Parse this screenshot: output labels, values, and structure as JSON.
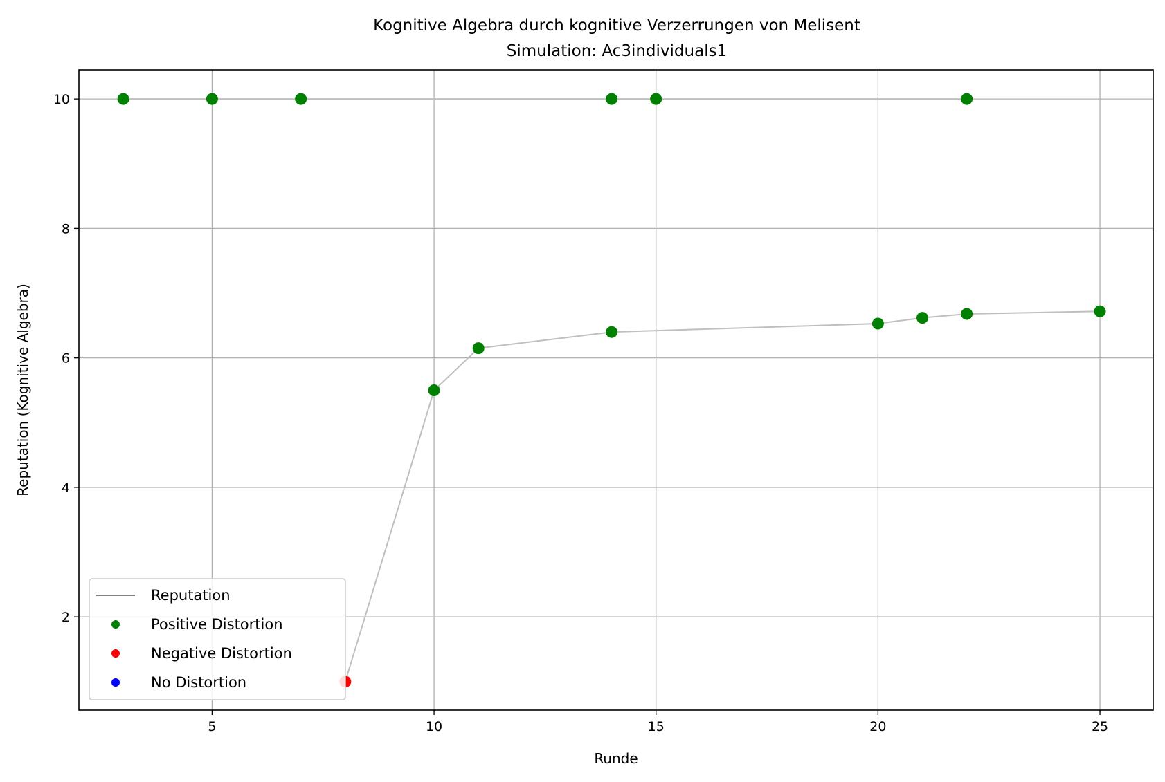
{
  "chart_data": {
    "type": "line",
    "title": "Kognitive Algebra durch kognitive Verzerrungen von Melisent",
    "subtitle": "Simulation: Ac3individuals1",
    "xlabel": "Runde",
    "ylabel": "Reputation (Kognitive Algebra)",
    "xlim": [
      2,
      26.2
    ],
    "ylim": [
      0.56,
      10.45
    ],
    "xticks": [
      5,
      10,
      15,
      20,
      25
    ],
    "yticks": [
      2,
      4,
      6,
      8,
      10
    ],
    "grid": true,
    "legend_position": "lower-left",
    "legend": [
      {
        "label": "Reputation",
        "kind": "line",
        "color": "#808080"
      },
      {
        "label": "Positive Distortion",
        "kind": "marker",
        "color": "#008000"
      },
      {
        "label": "Negative Distortion",
        "kind": "marker",
        "color": "#ff0000"
      },
      {
        "label": "No Distortion",
        "kind": "marker",
        "color": "#0000ff"
      }
    ],
    "series": [
      {
        "kind": "reputation-line-top",
        "color": "#bfbfbf",
        "points": [
          [
            3,
            10
          ],
          [
            5,
            10
          ],
          [
            7,
            10
          ],
          [
            14,
            10
          ],
          [
            15,
            10
          ],
          [
            22,
            10
          ]
        ]
      },
      {
        "kind": "reputation-line-main",
        "color": "#bfbfbf",
        "points": [
          [
            8,
            1.0
          ],
          [
            10,
            5.5
          ],
          [
            11,
            6.15
          ],
          [
            14,
            6.4
          ],
          [
            20,
            6.53
          ],
          [
            21,
            6.62
          ],
          [
            22,
            6.68
          ],
          [
            25,
            6.72
          ]
        ]
      }
    ],
    "points": [
      {
        "x": 3,
        "y": 10,
        "type": "positive"
      },
      {
        "x": 5,
        "y": 10,
        "type": "positive"
      },
      {
        "x": 7,
        "y": 10,
        "type": "positive"
      },
      {
        "x": 14,
        "y": 10,
        "type": "positive"
      },
      {
        "x": 15,
        "y": 10,
        "type": "positive"
      },
      {
        "x": 22,
        "y": 10,
        "type": "positive"
      },
      {
        "x": 8,
        "y": 1.0,
        "type": "negative"
      },
      {
        "x": 10,
        "y": 5.5,
        "type": "positive"
      },
      {
        "x": 11,
        "y": 6.15,
        "type": "positive"
      },
      {
        "x": 14,
        "y": 6.4,
        "type": "positive"
      },
      {
        "x": 20,
        "y": 6.53,
        "type": "positive"
      },
      {
        "x": 21,
        "y": 6.62,
        "type": "positive"
      },
      {
        "x": 22,
        "y": 6.68,
        "type": "positive"
      },
      {
        "x": 25,
        "y": 6.72,
        "type": "positive"
      }
    ],
    "colors": {
      "positive": "#008000",
      "negative": "#ff0000",
      "none": "#0000ff",
      "grid": "#b0b0b0"
    }
  }
}
